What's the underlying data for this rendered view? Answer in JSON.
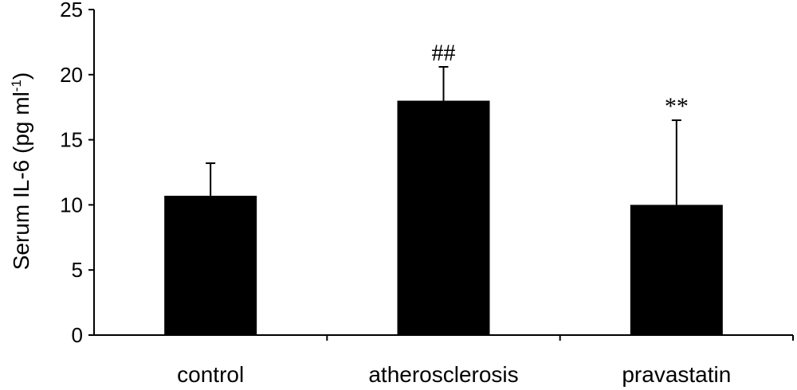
{
  "chart_data": {
    "type": "bar",
    "categories": [
      "control",
      "atherosclerosis",
      "pravastatin"
    ],
    "values": [
      10.7,
      18.0,
      10.0
    ],
    "error_upper": [
      13.2,
      20.6,
      16.5
    ],
    "annotations": [
      "",
      "##",
      "**"
    ],
    "ylabel_main": "Serum IL-6 (pg ml",
    "ylabel_sup": "-1",
    "ylabel_close": ")",
    "ylim": [
      0,
      25
    ],
    "yticks": [
      0,
      5,
      10,
      15,
      20,
      25
    ],
    "grid": false,
    "bar_color": "#000000"
  }
}
